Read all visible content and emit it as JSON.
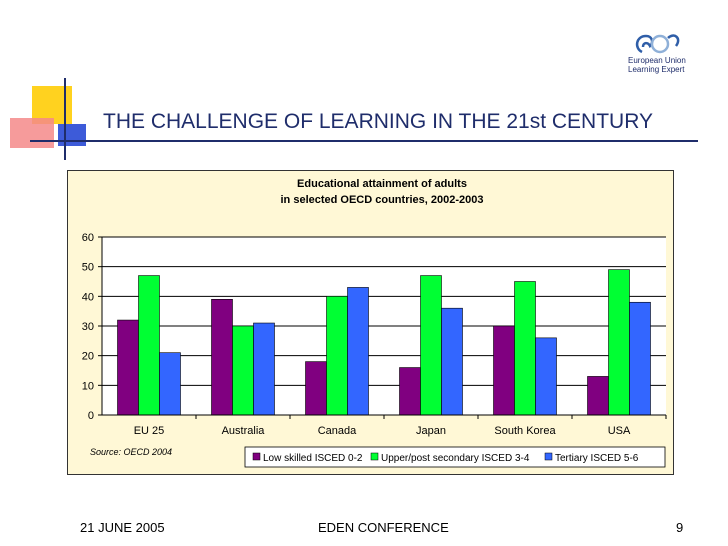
{
  "slide": {
    "title": "THE CHALLENGE OF LEARNING IN THE 21st CENTURY",
    "logo_line1": "European Union",
    "logo_line2": "Learning Expert",
    "footer_date": "21 JUNE 2005",
    "footer_center": "EDEN CONFERENCE",
    "page_number": "9",
    "source": "Source: OECD 2004"
  },
  "colors": {
    "title": "#1f2d6b",
    "chart_bg": "#fff8d6",
    "deco_yellow": "#ffd21f",
    "deco_pink": "#f48a8a",
    "deco_blue": "#3d5bd9"
  },
  "chart_data": {
    "type": "bar",
    "title_line1": "Educational attainment of adults",
    "title_line2": "in selected OECD countries, 2002-2003",
    "categories": [
      "EU 25",
      "Australia",
      "Canada",
      "Japan",
      "South Korea",
      "USA"
    ],
    "series": [
      {
        "name": "Low skilled ISCED 0-2",
        "color": "#800080",
        "values": [
          32,
          39,
          18,
          16,
          30,
          13
        ]
      },
      {
        "name": "Upper/post secondary ISCED 3-4",
        "color": "#00ff33",
        "values": [
          47,
          30,
          40,
          47,
          45,
          49
        ]
      },
      {
        "name": "Tertiary ISCED 5-6",
        "color": "#3366ff",
        "values": [
          21,
          31,
          43,
          36,
          26,
          38
        ]
      }
    ],
    "yticks": [
      0,
      10,
      20,
      30,
      40,
      50,
      60
    ],
    "ylim": [
      0,
      60
    ],
    "grid": true,
    "legend_position": "bottom"
  }
}
